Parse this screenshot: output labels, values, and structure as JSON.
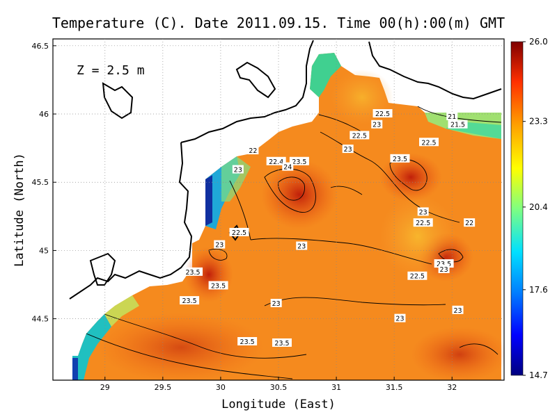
{
  "chart_data": {
    "type": "heatmap",
    "title": "Temperature (C). Date 2011.09.15. Time 00(h):00(m) GMT",
    "xlabel": "Longitude (East)",
    "ylabel": "Latitude (North)",
    "xlim": [
      28.55,
      32.45
    ],
    "ylim": [
      44.05,
      46.55
    ],
    "xticks": [
      "29",
      "29.5",
      "30",
      "30.5",
      "31",
      "31.5",
      "32"
    ],
    "yticks": [
      "44.5",
      "45",
      "45.5",
      "46",
      "46.5"
    ],
    "grid": true,
    "annotation": "Z = 2.5 m",
    "colorbar": {
      "range": [
        14.7,
        26.0
      ],
      "ticks": [
        "14.7",
        "17.6",
        "20.4",
        "23.3",
        "26.0"
      ],
      "colors": [
        "#00007f",
        "#0000ff",
        "#0080ff",
        "#00e0ff",
        "#80ff80",
        "#ffff00",
        "#ffa000",
        "#ff3000",
        "#7f0000"
      ]
    },
    "contour_labels": [
      {
        "text": "22.5",
        "lon": 31.4,
        "lat": 46.0
      },
      {
        "text": "23",
        "lon": 31.35,
        "lat": 45.92
      },
      {
        "text": "21",
        "lon": 32.0,
        "lat": 45.98
      },
      {
        "text": "21.5",
        "lon": 32.05,
        "lat": 45.92
      },
      {
        "text": "22.5",
        "lon": 31.2,
        "lat": 45.84
      },
      {
        "text": "22.5",
        "lon": 31.8,
        "lat": 45.79
      },
      {
        "text": "23",
        "lon": 31.1,
        "lat": 45.74
      },
      {
        "text": "22",
        "lon": 30.28,
        "lat": 45.73
      },
      {
        "text": "23.5",
        "lon": 31.55,
        "lat": 45.67
      },
      {
        "text": "22.4",
        "lon": 30.48,
        "lat": 45.65
      },
      {
        "text": "23.5",
        "lon": 30.68,
        "lat": 45.65
      },
      {
        "text": "24",
        "lon": 30.58,
        "lat": 45.61
      },
      {
        "text": "23",
        "lon": 30.15,
        "lat": 45.59
      },
      {
        "text": "23",
        "lon": 31.75,
        "lat": 45.28
      },
      {
        "text": "22.5",
        "lon": 31.75,
        "lat": 45.2
      },
      {
        "text": "22",
        "lon": 32.15,
        "lat": 45.2
      },
      {
        "text": "22.5",
        "lon": 30.16,
        "lat": 45.13
      },
      {
        "text": "23",
        "lon": 29.99,
        "lat": 45.04
      },
      {
        "text": "23",
        "lon": 30.7,
        "lat": 45.03
      },
      {
        "text": "23.5",
        "lon": 31.93,
        "lat": 44.9
      },
      {
        "text": "23",
        "lon": 31.93,
        "lat": 44.86
      },
      {
        "text": "23.5",
        "lon": 29.76,
        "lat": 44.84
      },
      {
        "text": "22.5",
        "lon": 31.7,
        "lat": 44.81
      },
      {
        "text": "23.5",
        "lon": 29.98,
        "lat": 44.74
      },
      {
        "text": "23",
        "lon": 30.48,
        "lat": 44.61
      },
      {
        "text": "23.5",
        "lon": 29.73,
        "lat": 44.63
      },
      {
        "text": "23",
        "lon": 32.05,
        "lat": 44.56
      },
      {
        "text": "23",
        "lon": 31.55,
        "lat": 44.5
      },
      {
        "text": "23.5",
        "lon": 30.23,
        "lat": 44.33
      },
      {
        "text": "23.5",
        "lon": 30.53,
        "lat": 44.32
      }
    ]
  }
}
